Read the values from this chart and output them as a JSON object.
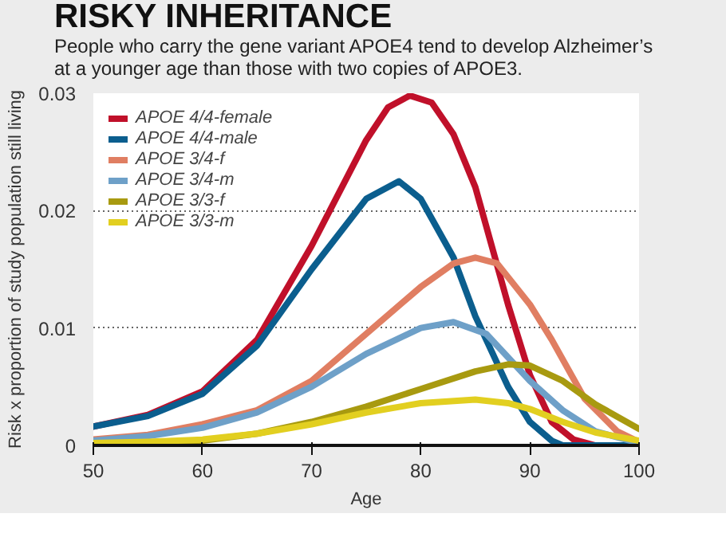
{
  "chart_data": {
    "type": "line",
    "title": "RISKY INHERITANCE",
    "subtitle": "People who carry the gene variant APOE4 tend to develop Alzheimer’s at a younger age than those with two copies of APOE3.",
    "xlabel": "Age",
    "ylabel": "Risk x proportion of study population still living",
    "xlim": [
      50,
      100
    ],
    "xticks": [
      50,
      60,
      70,
      80,
      90,
      100
    ],
    "ylim": [
      0,
      0.03
    ],
    "yticks": [
      0,
      0.01,
      0.02,
      0.03
    ],
    "grid": "y",
    "legend": "top left",
    "line_style": "solid",
    "marker": "none",
    "series": [
      {
        "name": "APOE 4/4-female",
        "color": "#c0102a",
        "x": [
          50,
          55,
          60,
          65,
          70,
          75,
          77,
          79,
          81,
          83,
          85,
          88,
          90,
          92,
          94,
          96,
          100
        ],
        "values": [
          0.0016,
          0.0026,
          0.0046,
          0.009,
          0.017,
          0.026,
          0.0288,
          0.0298,
          0.0292,
          0.0265,
          0.022,
          0.012,
          0.006,
          0.002,
          0.0005,
          0.0,
          0.0
        ]
      },
      {
        "name": "APOE 4/4-male",
        "color": "#0b5e8e",
        "x": [
          50,
          55,
          60,
          65,
          70,
          75,
          78,
          80,
          83,
          85,
          88,
          90,
          92,
          93,
          100
        ],
        "values": [
          0.0016,
          0.0025,
          0.0044,
          0.0085,
          0.015,
          0.021,
          0.0225,
          0.021,
          0.016,
          0.011,
          0.005,
          0.002,
          0.0004,
          0.0,
          0.0
        ]
      },
      {
        "name": "APOE 3/4-f",
        "color": "#e07e62",
        "x": [
          50,
          55,
          60,
          65,
          70,
          75,
          80,
          83,
          85,
          87,
          90,
          92,
          95,
          98,
          100
        ],
        "values": [
          0.0005,
          0.0009,
          0.0018,
          0.003,
          0.0055,
          0.0095,
          0.0135,
          0.0155,
          0.016,
          0.0155,
          0.012,
          0.009,
          0.004,
          0.0012,
          0.0003
        ]
      },
      {
        "name": "APOE 3/4-m",
        "color": "#6ea0c8",
        "x": [
          50,
          55,
          60,
          65,
          70,
          75,
          80,
          83,
          86,
          88,
          90,
          93,
          96,
          100
        ],
        "values": [
          0.0004,
          0.0008,
          0.0015,
          0.0028,
          0.005,
          0.0078,
          0.01,
          0.0105,
          0.0095,
          0.0075,
          0.0055,
          0.003,
          0.0012,
          0.0002
        ]
      },
      {
        "name": "APOE 3/3-f",
        "color": "#a89a10",
        "x": [
          50,
          55,
          60,
          65,
          70,
          75,
          80,
          85,
          88,
          90,
          93,
          96,
          100
        ],
        "values": [
          0.0001,
          0.0002,
          0.0004,
          0.001,
          0.002,
          0.0033,
          0.0048,
          0.0063,
          0.0069,
          0.0068,
          0.0055,
          0.0035,
          0.0014
        ]
      },
      {
        "name": "APOE 3/3-m",
        "color": "#e2cf20",
        "x": [
          50,
          55,
          60,
          65,
          70,
          75,
          80,
          85,
          88,
          90,
          93,
          96,
          100
        ],
        "values": [
          0.0002,
          0.0003,
          0.0005,
          0.001,
          0.0018,
          0.0028,
          0.0036,
          0.0039,
          0.0036,
          0.0031,
          0.002,
          0.0011,
          0.0004
        ]
      }
    ]
  }
}
